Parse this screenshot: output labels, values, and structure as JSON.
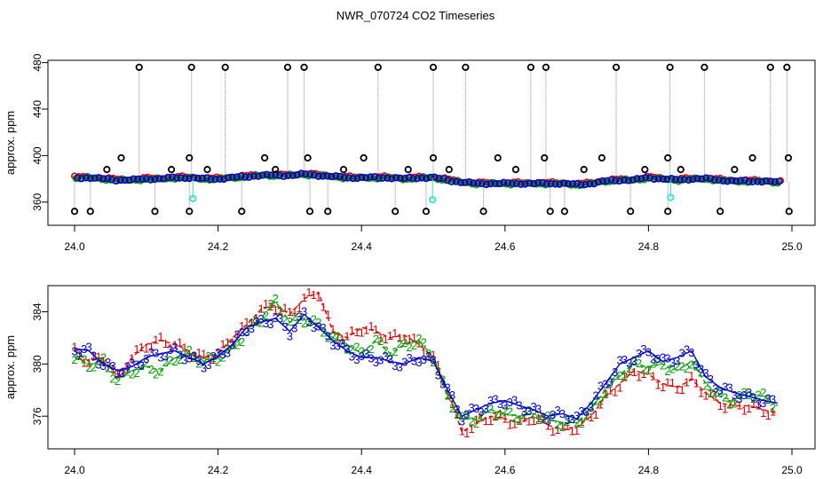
{
  "title": "NWR_070724  CO2 Timeseries",
  "chart_data": [
    {
      "type": "scatter",
      "panel": "top",
      "title": "NWR_070724  CO2 Timeseries",
      "xlabel": "",
      "ylabel": "approx. ppm",
      "xlim": [
        24.0,
        25.0
      ],
      "ylim": [
        340,
        482
      ],
      "xticks": [
        "24.0",
        "24.2",
        "24.4",
        "24.6",
        "24.8",
        "25.0"
      ],
      "yticks": [
        "360",
        "400",
        "440",
        "480"
      ],
      "colors": {
        "black": "#000000",
        "red": "#e00000",
        "green": "#00a000",
        "blue": "#0000cc",
        "cyan": "#33dddd",
        "gray": "#888888"
      },
      "baseline": {
        "x": [
          24.0,
          24.02,
          24.04,
          24.06,
          24.08,
          24.1,
          24.12,
          24.14,
          24.16,
          24.18,
          24.2,
          24.22,
          24.24,
          24.26,
          24.28,
          24.3,
          24.32,
          24.34,
          24.36,
          24.38,
          24.4,
          24.42,
          24.44,
          24.46,
          24.48,
          24.5,
          24.52,
          24.54,
          24.56,
          24.58,
          24.6,
          24.62,
          24.64,
          24.66,
          24.68,
          24.7,
          24.72,
          24.74,
          24.76,
          24.78,
          24.8,
          24.82,
          24.84,
          24.86,
          24.88,
          24.9,
          24.92,
          24.94,
          24.96,
          24.98
        ],
        "y": [
          381,
          381,
          380,
          379,
          379,
          380,
          380,
          381,
          381,
          380,
          380,
          381,
          382,
          383,
          383,
          383,
          384,
          383,
          382,
          381,
          381,
          381,
          381,
          380,
          381,
          381,
          379,
          377,
          376,
          376,
          376,
          376,
          376,
          376,
          376,
          375,
          376,
          378,
          379,
          379,
          381,
          380,
          379,
          380,
          380,
          379,
          378,
          378,
          378,
          377
        ]
      },
      "spikes_high": [
        24.09,
        24.163,
        24.21,
        24.297,
        24.32,
        24.423,
        24.5,
        24.545,
        24.636,
        24.657,
        24.755,
        24.83,
        24.878,
        24.97,
        24.993
      ],
      "spikes_low": [
        24.0,
        24.022,
        24.112,
        24.16,
        24.233,
        24.328,
        24.353,
        24.447,
        24.49,
        24.57,
        24.663,
        24.683,
        24.775,
        24.827,
        24.9,
        24.996
      ],
      "spikes_mid": [
        24.045,
        24.065,
        24.135,
        24.16,
        24.185,
        24.265,
        24.28,
        24.325,
        24.375,
        24.403,
        24.465,
        24.5,
        24.522,
        24.59,
        24.615,
        24.655,
        24.71,
        24.735,
        24.795,
        24.827,
        24.845,
        24.945,
        24.92,
        24.995
      ],
      "cyan_points": [
        [
          24.165,
          363
        ],
        [
          24.499,
          362
        ],
        [
          24.831,
          364
        ]
      ]
    },
    {
      "type": "line",
      "panel": "bottom",
      "xlabel": "",
      "ylabel": "approx. ppm",
      "xlim": [
        24.0,
        25.0
      ],
      "ylim": [
        373.5,
        386
      ],
      "xticks": [
        "24.0",
        "24.2",
        "24.4",
        "24.6",
        "24.8",
        "25.0"
      ],
      "yticks": [
        "376",
        "380",
        "384"
      ],
      "series": [
        {
          "name": "1",
          "color": "#e00000",
          "x": [
            24.0,
            24.02,
            24.04,
            24.06,
            24.08,
            24.1,
            24.12,
            24.14,
            24.16,
            24.18,
            24.2,
            24.22,
            24.24,
            24.26,
            24.28,
            24.3,
            24.32,
            24.34,
            24.36,
            24.38,
            24.4,
            24.42,
            24.44,
            24.46,
            24.48,
            24.5,
            24.52,
            24.54,
            24.56,
            24.58,
            24.6,
            24.62,
            24.64,
            24.66,
            24.68,
            24.7,
            24.72,
            24.74,
            24.76,
            24.78,
            24.8,
            24.82,
            24.84,
            24.86,
            24.88,
            24.9,
            24.92,
            24.94,
            24.96,
            24.98
          ],
          "values": [
            381.0,
            380.2,
            380.5,
            379.0,
            380.5,
            381.5,
            381.8,
            381.5,
            381.0,
            380.5,
            380.8,
            382.0,
            383.0,
            384.2,
            384.5,
            383.8,
            385.0,
            385.5,
            382.5,
            382.0,
            382.8,
            382.5,
            382.0,
            382.2,
            381.5,
            380.5,
            378.0,
            374.8,
            375.5,
            376.0,
            375.8,
            375.5,
            376.0,
            375.3,
            375.0,
            375.2,
            376.0,
            377.5,
            378.5,
            379.5,
            379.2,
            378.5,
            378.2,
            378.8,
            377.8,
            377.0,
            376.8,
            376.8,
            376.5,
            376.2
          ]
        },
        {
          "name": "2",
          "color": "#00a000",
          "x": [
            24.0,
            24.02,
            24.04,
            24.06,
            24.08,
            24.1,
            24.12,
            24.14,
            24.16,
            24.18,
            24.2,
            24.22,
            24.24,
            24.26,
            24.28,
            24.3,
            24.32,
            24.34,
            24.36,
            24.38,
            24.4,
            24.42,
            24.44,
            24.46,
            24.48,
            24.5,
            24.52,
            24.54,
            24.56,
            24.58,
            24.6,
            24.62,
            24.64,
            24.66,
            24.68,
            24.7,
            24.72,
            24.74,
            24.76,
            24.78,
            24.8,
            24.82,
            24.84,
            24.86,
            24.88,
            24.9,
            24.92,
            24.94,
            24.96,
            24.98
          ],
          "values": [
            380.5,
            380.0,
            380.2,
            378.8,
            379.5,
            379.8,
            379.5,
            380.5,
            380.8,
            380.2,
            380.5,
            381.2,
            382.5,
            383.5,
            384.8,
            383.2,
            383.5,
            383.0,
            382.0,
            381.5,
            380.8,
            381.8,
            380.8,
            381.5,
            381.8,
            380.5,
            377.5,
            375.8,
            375.8,
            376.5,
            376.2,
            376.0,
            376.2,
            375.8,
            375.5,
            375.5,
            376.5,
            378.0,
            379.2,
            380.0,
            379.8,
            380.0,
            379.5,
            380.2,
            378.5,
            377.5,
            377.2,
            377.8,
            377.5,
            376.8
          ]
        },
        {
          "name": "3",
          "color": "#0000cc",
          "x": [
            24.0,
            24.02,
            24.04,
            24.06,
            24.08,
            24.1,
            24.12,
            24.14,
            24.16,
            24.18,
            24.2,
            24.22,
            24.24,
            24.26,
            24.28,
            24.3,
            24.32,
            24.34,
            24.36,
            24.38,
            24.4,
            24.42,
            24.44,
            24.46,
            24.48,
            24.5,
            24.52,
            24.54,
            24.56,
            24.58,
            24.6,
            24.62,
            24.64,
            24.66,
            24.68,
            24.7,
            24.72,
            24.74,
            24.76,
            24.78,
            24.8,
            24.82,
            24.84,
            24.86,
            24.88,
            24.9,
            24.92,
            24.94,
            24.96,
            24.98
          ],
          "values": [
            381.2,
            381.0,
            380.0,
            379.5,
            379.8,
            380.5,
            380.8,
            381.0,
            380.5,
            380.0,
            380.6,
            381.5,
            382.8,
            383.2,
            383.5,
            382.5,
            383.8,
            382.8,
            381.8,
            381.0,
            380.5,
            380.5,
            380.2,
            380.0,
            380.5,
            380.2,
            378.0,
            376.0,
            376.5,
            377.0,
            377.2,
            376.8,
            376.5,
            376.0,
            376.2,
            375.8,
            377.0,
            378.5,
            380.0,
            380.5,
            381.0,
            380.2,
            380.5,
            381.0,
            379.0,
            378.2,
            377.8,
            377.5,
            377.2,
            377.0
          ]
        }
      ]
    }
  ]
}
